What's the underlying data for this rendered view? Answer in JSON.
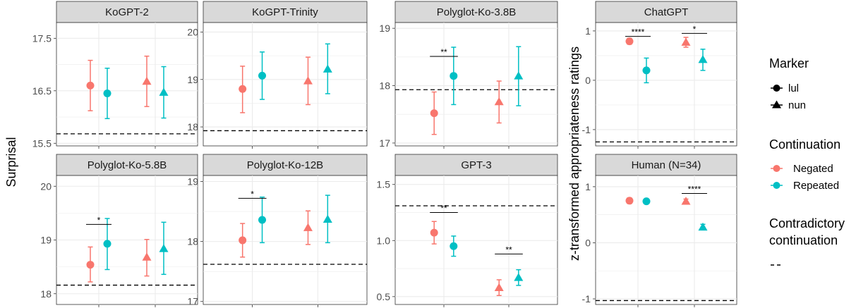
{
  "colors": {
    "negated": "#F8766D",
    "repeated": "#00BFC4",
    "strip": "#d9d9d9",
    "grid": "#ebebeb"
  },
  "y_axis_left": "Surprisal",
  "y_axis_right": "z-transformed appropriateness ratings",
  "legend": {
    "marker_title": "Marker",
    "marker_items": [
      {
        "label": "lul",
        "shape": "circle"
      },
      {
        "label": "nun",
        "shape": "triangle"
      }
    ],
    "continuation_title": "Continuation",
    "continuation_items": [
      {
        "label": "Negated",
        "color": "#F8766D"
      },
      {
        "label": "Repeated",
        "color": "#00BFC4"
      }
    ],
    "contradictory_title": [
      "Contradictory",
      "continuation"
    ],
    "contradictory_symbol": "dashed-line"
  },
  "chart_data": [
    {
      "type": "scatter",
      "title": "KoGPT-2",
      "ylim": [
        15.45,
        17.8
      ],
      "yticks": [
        "15.5",
        "16.5",
        "17.5"
      ],
      "yticks_values": [
        15.5,
        16.5,
        17.5
      ],
      "baseline": 15.68,
      "points": [
        {
          "marker": "lul",
          "continuation": "Negated",
          "y": 16.6,
          "lo": 16.12,
          "hi": 17.08
        },
        {
          "marker": "lul",
          "continuation": "Repeated",
          "y": 16.45,
          "lo": 15.97,
          "hi": 16.93
        },
        {
          "marker": "nun",
          "continuation": "Negated",
          "y": 16.68,
          "lo": 16.2,
          "hi": 17.16
        },
        {
          "marker": "nun",
          "continuation": "Repeated",
          "y": 16.47,
          "lo": 15.98,
          "hi": 16.96
        }
      ],
      "significance": []
    },
    {
      "type": "scatter",
      "title": "KoGPT-Trinity",
      "ylim": [
        17.6,
        20.2
      ],
      "yticks": [
        "18",
        "19",
        "20"
      ],
      "yticks_values": [
        18,
        19,
        20
      ],
      "baseline": 17.92,
      "points": [
        {
          "marker": "lul",
          "continuation": "Negated",
          "y": 18.8,
          "lo": 18.3,
          "hi": 19.28
        },
        {
          "marker": "lul",
          "continuation": "Repeated",
          "y": 19.08,
          "lo": 18.58,
          "hi": 19.58
        },
        {
          "marker": "nun",
          "continuation": "Negated",
          "y": 18.97,
          "lo": 18.47,
          "hi": 19.47
        },
        {
          "marker": "nun",
          "continuation": "Repeated",
          "y": 19.22,
          "lo": 18.7,
          "hi": 19.75
        }
      ],
      "significance": []
    },
    {
      "type": "scatter",
      "title": "Polyglot-Ko-3.8B",
      "ylim": [
        16.95,
        19.1
      ],
      "yticks": [
        "17",
        "18",
        "19"
      ],
      "yticks_values": [
        17,
        18,
        19
      ],
      "baseline": 17.93,
      "points": [
        {
          "marker": "lul",
          "continuation": "Negated",
          "y": 17.52,
          "lo": 17.15,
          "hi": 17.89
        },
        {
          "marker": "lul",
          "continuation": "Repeated",
          "y": 18.17,
          "lo": 17.67,
          "hi": 18.67
        },
        {
          "marker": "nun",
          "continuation": "Negated",
          "y": 17.72,
          "lo": 17.35,
          "hi": 18.08
        },
        {
          "marker": "nun",
          "continuation": "Repeated",
          "y": 18.17,
          "lo": 17.65,
          "hi": 18.68
        }
      ],
      "significance": [
        {
          "group": "lul",
          "label": "**",
          "y": 18.51
        }
      ]
    },
    {
      "type": "scatter",
      "title": "Polyglot-Ko-5.8B",
      "ylim": [
        17.8,
        20.2
      ],
      "yticks": [
        "18",
        "19",
        "20"
      ],
      "yticks_values": [
        18,
        19,
        20
      ],
      "baseline": 18.16,
      "points": [
        {
          "marker": "lul",
          "continuation": "Negated",
          "y": 18.54,
          "lo": 18.22,
          "hi": 18.87
        },
        {
          "marker": "lul",
          "continuation": "Repeated",
          "y": 18.93,
          "lo": 18.45,
          "hi": 19.4
        },
        {
          "marker": "nun",
          "continuation": "Negated",
          "y": 18.68,
          "lo": 18.33,
          "hi": 19.01
        },
        {
          "marker": "nun",
          "continuation": "Repeated",
          "y": 18.84,
          "lo": 18.36,
          "hi": 19.33
        }
      ],
      "significance": [
        {
          "group": "lul",
          "label": "*",
          "y": 19.29
        }
      ]
    },
    {
      "type": "scatter",
      "title": "Polyglot-Ko-12B",
      "ylim": [
        16.95,
        19.1
      ],
      "yticks": [
        "17",
        "18",
        "19"
      ],
      "yticks_values": [
        17,
        18,
        19
      ],
      "baseline": 17.62,
      "points": [
        {
          "marker": "lul",
          "continuation": "Negated",
          "y": 18.02,
          "lo": 17.74,
          "hi": 18.3
        },
        {
          "marker": "lul",
          "continuation": "Repeated",
          "y": 18.36,
          "lo": 17.98,
          "hi": 18.74
        },
        {
          "marker": "nun",
          "continuation": "Negated",
          "y": 18.23,
          "lo": 17.95,
          "hi": 18.51
        },
        {
          "marker": "nun",
          "continuation": "Repeated",
          "y": 18.37,
          "lo": 17.98,
          "hi": 18.77
        }
      ],
      "significance": [
        {
          "group": "lul",
          "label": "*",
          "y": 18.72
        }
      ]
    },
    {
      "type": "scatter",
      "title": "GPT-3",
      "ylim": [
        0.43,
        1.58
      ],
      "yticks": [
        "0.5",
        "1.0",
        "1.5"
      ],
      "yticks_values": [
        0.5,
        1.0,
        1.5
      ],
      "baseline": 1.31,
      "points": [
        {
          "marker": "lul",
          "continuation": "Negated",
          "y": 1.07,
          "lo": 0.97,
          "hi": 1.17
        },
        {
          "marker": "lul",
          "continuation": "Repeated",
          "y": 0.95,
          "lo": 0.86,
          "hi": 1.04
        },
        {
          "marker": "nun",
          "continuation": "Negated",
          "y": 0.58,
          "lo": 0.51,
          "hi": 0.65
        },
        {
          "marker": "nun",
          "continuation": "Repeated",
          "y": 0.67,
          "lo": 0.6,
          "hi": 0.74
        }
      ],
      "significance": [
        {
          "group": "lul",
          "label": "**",
          "y": 1.25
        },
        {
          "group": "nun",
          "label": "**",
          "y": 0.88
        }
      ]
    },
    {
      "type": "scatter",
      "title": "ChatGPT",
      "ylim": [
        -1.33,
        1.17
      ],
      "yticks": [
        "-1",
        "0",
        "1"
      ],
      "yticks_values": [
        -1,
        0,
        1
      ],
      "baseline": -1.25,
      "points": [
        {
          "marker": "lul",
          "continuation": "Negated",
          "y": 0.79,
          "lo": 0.73,
          "hi": 0.85
        },
        {
          "marker": "lul",
          "continuation": "Repeated",
          "y": 0.2,
          "lo": -0.05,
          "hi": 0.45
        },
        {
          "marker": "nun",
          "continuation": "Negated",
          "y": 0.77,
          "lo": 0.67,
          "hi": 0.87
        },
        {
          "marker": "nun",
          "continuation": "Repeated",
          "y": 0.42,
          "lo": 0.2,
          "hi": 0.63
        }
      ],
      "significance": [
        {
          "group": "lul",
          "label": "****",
          "y": 0.89
        },
        {
          "group": "nun",
          "label": "*",
          "y": 0.95
        }
      ]
    },
    {
      "type": "scatter",
      "title": "Human (N=34)",
      "ylim": [
        -1.1,
        1.2
      ],
      "yticks": [
        "-1",
        "0",
        "1"
      ],
      "yticks_values": [
        -1,
        0,
        1
      ],
      "baseline": -1.03,
      "points": [
        {
          "marker": "lul",
          "continuation": "Negated",
          "y": 0.75,
          "lo": 0.7,
          "hi": 0.8
        },
        {
          "marker": "lul",
          "continuation": "Repeated",
          "y": 0.74,
          "lo": 0.71,
          "hi": 0.77
        },
        {
          "marker": "nun",
          "continuation": "Negated",
          "y": 0.74,
          "lo": 0.7,
          "hi": 0.78
        },
        {
          "marker": "nun",
          "continuation": "Repeated",
          "y": 0.28,
          "lo": 0.23,
          "hi": 0.33
        }
      ],
      "significance": [
        {
          "group": "nun",
          "label": "****",
          "y": 0.88
        }
      ]
    }
  ]
}
